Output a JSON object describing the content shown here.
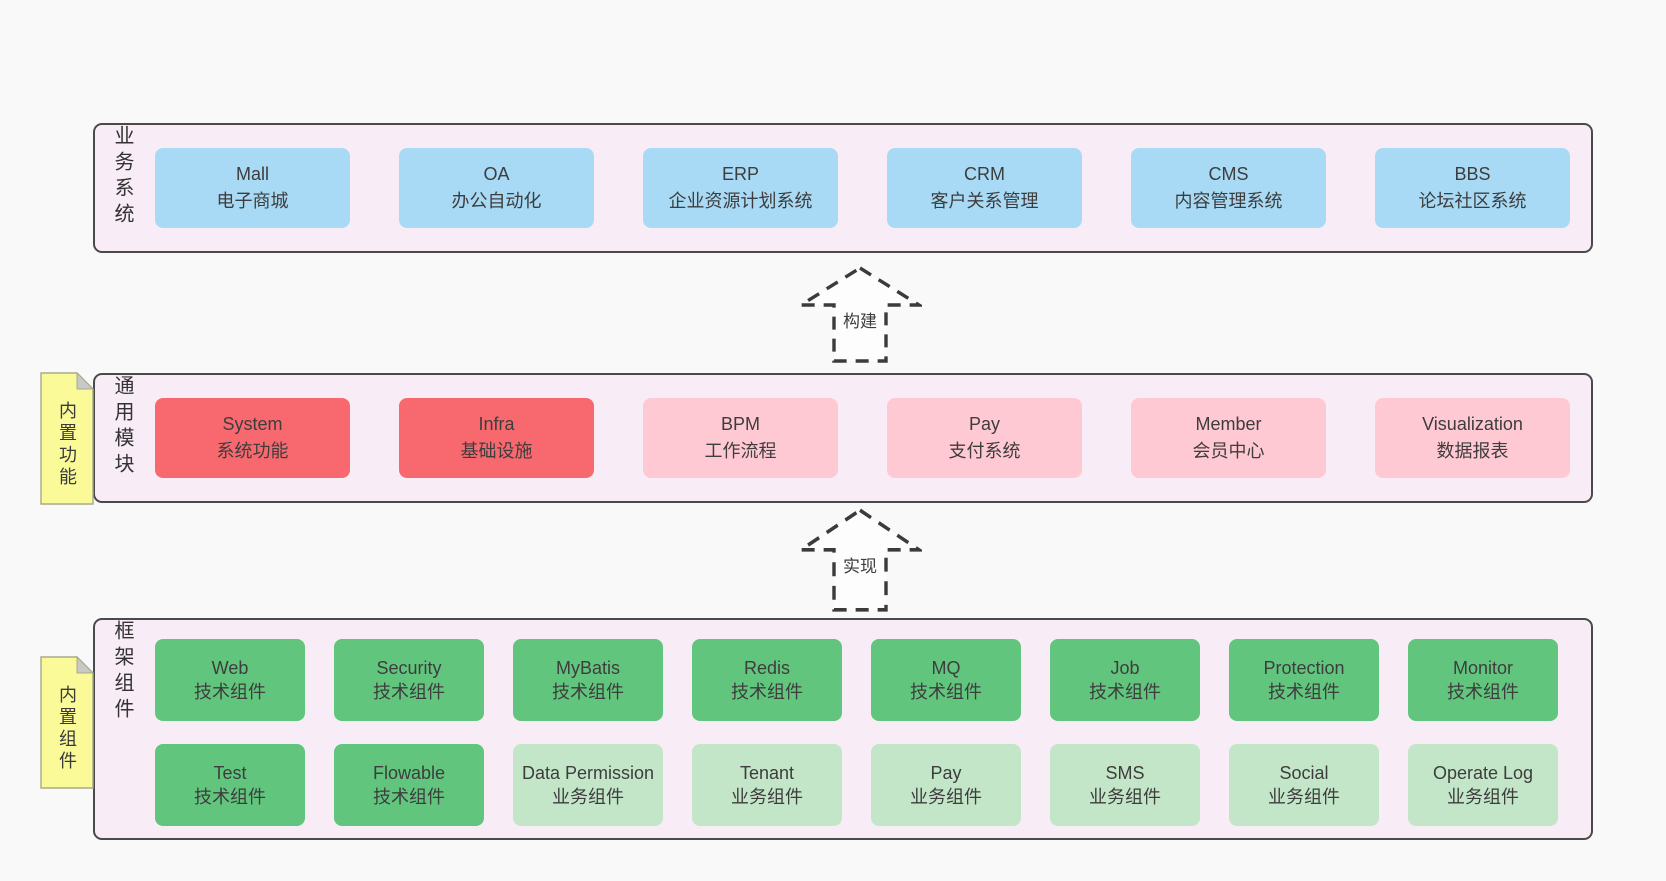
{
  "colors": {
    "page_background": "#f9f9f9",
    "layer_background": "#f8edf6",
    "layer_border": "#4a4a4a",
    "blue": "#a8daf5",
    "red": "#f7696f",
    "pink": "#ffc9d3",
    "green": "#62c57d",
    "green_light": "#c3e6c8",
    "note_yellow": "#fafa98",
    "note_fold_gray": "#c8c8c8",
    "text": "#3d3d3d"
  },
  "arrows": [
    {
      "label": "构建"
    },
    {
      "label": "实现"
    }
  ],
  "layers": [
    {
      "label": "业务系统",
      "note": "",
      "rows": [
        [
          {
            "title": "Mall",
            "subtitle": "电子商城",
            "variant": "blue"
          },
          {
            "title": "OA",
            "subtitle": "办公自动化",
            "variant": "blue"
          },
          {
            "title": "ERP",
            "subtitle": "企业资源计划系统",
            "variant": "blue"
          },
          {
            "title": "CRM",
            "subtitle": "客户关系管理",
            "variant": "blue"
          },
          {
            "title": "CMS",
            "subtitle": "内容管理系统",
            "variant": "blue"
          },
          {
            "title": "BBS",
            "subtitle": "论坛社区系统",
            "variant": "blue"
          }
        ]
      ]
    },
    {
      "label": "通用模块",
      "note": "内置功能",
      "rows": [
        [
          {
            "title": "System",
            "subtitle": "系统功能",
            "variant": "red"
          },
          {
            "title": "Infra",
            "subtitle": "基础设施",
            "variant": "red"
          },
          {
            "title": "BPM",
            "subtitle": "工作流程",
            "variant": "pink"
          },
          {
            "title": "Pay",
            "subtitle": "支付系统",
            "variant": "pink"
          },
          {
            "title": "Member",
            "subtitle": "会员中心",
            "variant": "pink"
          },
          {
            "title": "Visualization",
            "subtitle": "数据报表",
            "variant": "pink"
          }
        ]
      ]
    },
    {
      "label": "框架组件",
      "note": "内置组件",
      "rows": [
        [
          {
            "title": "Web",
            "subtitle": "技术组件",
            "variant": "green"
          },
          {
            "title": "Security",
            "subtitle": "技术组件",
            "variant": "green"
          },
          {
            "title": "MyBatis",
            "subtitle": "技术组件",
            "variant": "green"
          },
          {
            "title": "Redis",
            "subtitle": "技术组件",
            "variant": "green"
          },
          {
            "title": "MQ",
            "subtitle": "技术组件",
            "variant": "green"
          },
          {
            "title": "Job",
            "subtitle": "技术组件",
            "variant": "green"
          },
          {
            "title": "Protection",
            "subtitle": "技术组件",
            "variant": "green"
          },
          {
            "title": "Monitor",
            "subtitle": "技术组件",
            "variant": "green"
          }
        ],
        [
          {
            "title": "Test",
            "subtitle": "技术组件",
            "variant": "green"
          },
          {
            "title": "Flowable",
            "subtitle": "技术组件",
            "variant": "green"
          },
          {
            "title": "Data Permission",
            "subtitle": "业务组件",
            "variant": "green-light"
          },
          {
            "title": "Tenant",
            "subtitle": "业务组件",
            "variant": "green-light"
          },
          {
            "title": "Pay",
            "subtitle": "业务组件",
            "variant": "green-light"
          },
          {
            "title": "SMS",
            "subtitle": "业务组件",
            "variant": "green-light"
          },
          {
            "title": "Social",
            "subtitle": "业务组件",
            "variant": "green-light"
          },
          {
            "title": "Operate Log",
            "subtitle": "业务组件",
            "variant": "green-light"
          }
        ]
      ]
    }
  ]
}
